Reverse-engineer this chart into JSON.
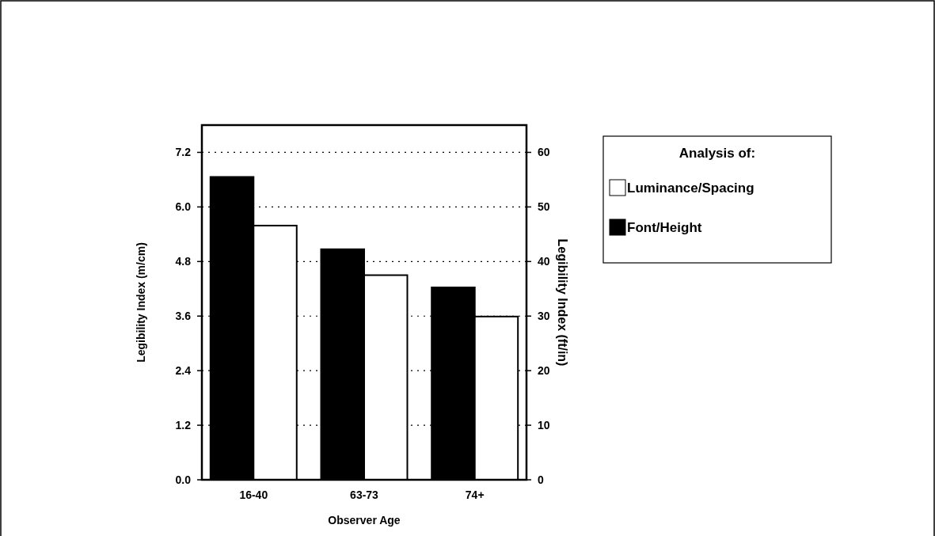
{
  "chart_data": {
    "type": "bar",
    "categories": [
      "16-40",
      "63-73",
      "74+"
    ],
    "series": [
      {
        "name": "Font/Height",
        "color": "#000000",
        "values": [
          6.66,
          5.07,
          4.23
        ]
      },
      {
        "name": "Luminance/Spacing",
        "color": "#ffffff",
        "values": [
          5.59,
          4.5,
          3.59
        ]
      }
    ],
    "xlabel": "Observer Age",
    "ylabel": "Legibility Index (m/cm)",
    "y2label": "Legibility Index (ft/in)",
    "ylim": [
      0,
      7.8
    ],
    "yticks": [
      {
        "value": 0,
        "label": "0.0"
      },
      1.2,
      2.4,
      3.6,
      4.8,
      {
        "value": 6,
        "label": "6.0"
      },
      7.2
    ],
    "y2lim": [
      0,
      65
    ],
    "y2ticks": [
      0,
      10,
      20,
      30,
      40,
      50,
      60
    ],
    "legend_title": "Analysis of:",
    "legend": "top right",
    "grid": "y"
  }
}
